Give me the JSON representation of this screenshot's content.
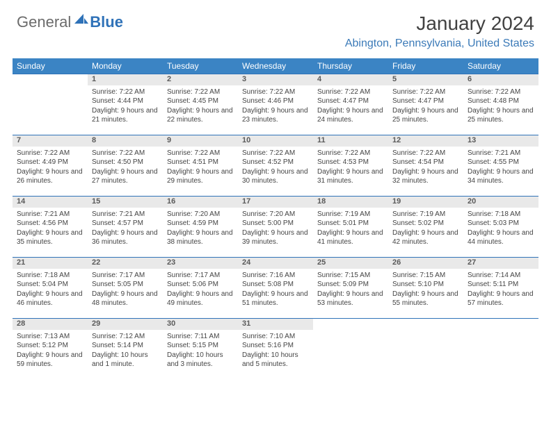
{
  "logo": {
    "word1": "General",
    "word2": "Blue"
  },
  "title": "January 2024",
  "location": "Abington, Pennsylvania, United States",
  "colors": {
    "header_bg": "#3b84c4",
    "accent": "#2f72b8",
    "daynum_bg": "#e9e9e9",
    "text": "#444444"
  },
  "weekdays": [
    "Sunday",
    "Monday",
    "Tuesday",
    "Wednesday",
    "Thursday",
    "Friday",
    "Saturday"
  ],
  "weeks": [
    [
      null,
      {
        "n": "1",
        "sr": "7:22 AM",
        "ss": "4:44 PM",
        "dl": "9 hours and 21 minutes."
      },
      {
        "n": "2",
        "sr": "7:22 AM",
        "ss": "4:45 PM",
        "dl": "9 hours and 22 minutes."
      },
      {
        "n": "3",
        "sr": "7:22 AM",
        "ss": "4:46 PM",
        "dl": "9 hours and 23 minutes."
      },
      {
        "n": "4",
        "sr": "7:22 AM",
        "ss": "4:47 PM",
        "dl": "9 hours and 24 minutes."
      },
      {
        "n": "5",
        "sr": "7:22 AM",
        "ss": "4:47 PM",
        "dl": "9 hours and 25 minutes."
      },
      {
        "n": "6",
        "sr": "7:22 AM",
        "ss": "4:48 PM",
        "dl": "9 hours and 25 minutes."
      }
    ],
    [
      {
        "n": "7",
        "sr": "7:22 AM",
        "ss": "4:49 PM",
        "dl": "9 hours and 26 minutes."
      },
      {
        "n": "8",
        "sr": "7:22 AM",
        "ss": "4:50 PM",
        "dl": "9 hours and 27 minutes."
      },
      {
        "n": "9",
        "sr": "7:22 AM",
        "ss": "4:51 PM",
        "dl": "9 hours and 29 minutes."
      },
      {
        "n": "10",
        "sr": "7:22 AM",
        "ss": "4:52 PM",
        "dl": "9 hours and 30 minutes."
      },
      {
        "n": "11",
        "sr": "7:22 AM",
        "ss": "4:53 PM",
        "dl": "9 hours and 31 minutes."
      },
      {
        "n": "12",
        "sr": "7:22 AM",
        "ss": "4:54 PM",
        "dl": "9 hours and 32 minutes."
      },
      {
        "n": "13",
        "sr": "7:21 AM",
        "ss": "4:55 PM",
        "dl": "9 hours and 34 minutes."
      }
    ],
    [
      {
        "n": "14",
        "sr": "7:21 AM",
        "ss": "4:56 PM",
        "dl": "9 hours and 35 minutes."
      },
      {
        "n": "15",
        "sr": "7:21 AM",
        "ss": "4:57 PM",
        "dl": "9 hours and 36 minutes."
      },
      {
        "n": "16",
        "sr": "7:20 AM",
        "ss": "4:59 PM",
        "dl": "9 hours and 38 minutes."
      },
      {
        "n": "17",
        "sr": "7:20 AM",
        "ss": "5:00 PM",
        "dl": "9 hours and 39 minutes."
      },
      {
        "n": "18",
        "sr": "7:19 AM",
        "ss": "5:01 PM",
        "dl": "9 hours and 41 minutes."
      },
      {
        "n": "19",
        "sr": "7:19 AM",
        "ss": "5:02 PM",
        "dl": "9 hours and 42 minutes."
      },
      {
        "n": "20",
        "sr": "7:18 AM",
        "ss": "5:03 PM",
        "dl": "9 hours and 44 minutes."
      }
    ],
    [
      {
        "n": "21",
        "sr": "7:18 AM",
        "ss": "5:04 PM",
        "dl": "9 hours and 46 minutes."
      },
      {
        "n": "22",
        "sr": "7:17 AM",
        "ss": "5:05 PM",
        "dl": "9 hours and 48 minutes."
      },
      {
        "n": "23",
        "sr": "7:17 AM",
        "ss": "5:06 PM",
        "dl": "9 hours and 49 minutes."
      },
      {
        "n": "24",
        "sr": "7:16 AM",
        "ss": "5:08 PM",
        "dl": "9 hours and 51 minutes."
      },
      {
        "n": "25",
        "sr": "7:15 AM",
        "ss": "5:09 PM",
        "dl": "9 hours and 53 minutes."
      },
      {
        "n": "26",
        "sr": "7:15 AM",
        "ss": "5:10 PM",
        "dl": "9 hours and 55 minutes."
      },
      {
        "n": "27",
        "sr": "7:14 AM",
        "ss": "5:11 PM",
        "dl": "9 hours and 57 minutes."
      }
    ],
    [
      {
        "n": "28",
        "sr": "7:13 AM",
        "ss": "5:12 PM",
        "dl": "9 hours and 59 minutes."
      },
      {
        "n": "29",
        "sr": "7:12 AM",
        "ss": "5:14 PM",
        "dl": "10 hours and 1 minute."
      },
      {
        "n": "30",
        "sr": "7:11 AM",
        "ss": "5:15 PM",
        "dl": "10 hours and 3 minutes."
      },
      {
        "n": "31",
        "sr": "7:10 AM",
        "ss": "5:16 PM",
        "dl": "10 hours and 5 minutes."
      },
      null,
      null,
      null
    ]
  ]
}
